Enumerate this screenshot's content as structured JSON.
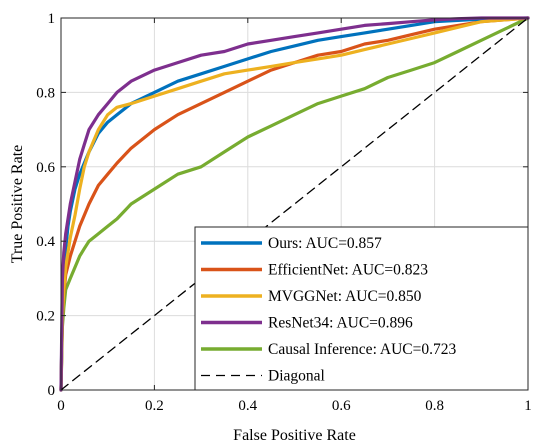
{
  "chart_data": {
    "type": "line",
    "title": "",
    "xlabel": "False Positive Rate",
    "ylabel": "True Positive Rate",
    "xlim": [
      0,
      1
    ],
    "ylim": [
      0,
      1
    ],
    "xticks": [
      "0",
      "0.2",
      "0.4",
      "0.6",
      "0.8",
      "1"
    ],
    "yticks": [
      "0",
      "0.2",
      "0.4",
      "0.6",
      "0.8",
      "1"
    ],
    "grid": true,
    "legend_position": "bottom-right",
    "series": [
      {
        "name": "Ours: AUC=0.857",
        "color": "#0072BD",
        "dash": "solid",
        "x": [
          0,
          0.003,
          0.006,
          0.01,
          0.015,
          0.02,
          0.03,
          0.04,
          0.05,
          0.06,
          0.08,
          0.1,
          0.12,
          0.15,
          0.2,
          0.25,
          0.3,
          0.35,
          0.4,
          0.45,
          0.5,
          0.55,
          0.6,
          0.65,
          0.7,
          0.75,
          0.8,
          0.9,
          1.0
        ],
        "y": [
          0,
          0.22,
          0.3,
          0.38,
          0.44,
          0.48,
          0.54,
          0.58,
          0.61,
          0.64,
          0.69,
          0.72,
          0.74,
          0.77,
          0.8,
          0.83,
          0.85,
          0.87,
          0.89,
          0.91,
          0.925,
          0.94,
          0.95,
          0.96,
          0.97,
          0.98,
          0.99,
          0.997,
          1.0
        ]
      },
      {
        "name": "EfficientNet: AUC=0.823",
        "color": "#D95319",
        "dash": "solid",
        "x": [
          0,
          0.003,
          0.006,
          0.01,
          0.02,
          0.03,
          0.04,
          0.05,
          0.06,
          0.08,
          0.1,
          0.12,
          0.15,
          0.2,
          0.25,
          0.3,
          0.35,
          0.4,
          0.45,
          0.5,
          0.55,
          0.6,
          0.65,
          0.7,
          0.75,
          0.8,
          0.85,
          0.9,
          1.0
        ],
        "y": [
          0,
          0.2,
          0.26,
          0.31,
          0.36,
          0.4,
          0.44,
          0.47,
          0.5,
          0.55,
          0.58,
          0.61,
          0.65,
          0.7,
          0.74,
          0.77,
          0.8,
          0.83,
          0.86,
          0.88,
          0.9,
          0.91,
          0.93,
          0.94,
          0.955,
          0.97,
          0.98,
          0.99,
          1.0
        ]
      },
      {
        "name": "MVGGNet: AUC=0.850",
        "color": "#EDB120",
        "dash": "solid",
        "x": [
          0,
          0.003,
          0.006,
          0.01,
          0.02,
          0.03,
          0.04,
          0.05,
          0.06,
          0.08,
          0.1,
          0.12,
          0.15,
          0.2,
          0.25,
          0.3,
          0.35,
          0.4,
          0.45,
          0.5,
          0.55,
          0.6,
          0.65,
          0.7,
          0.75,
          0.8,
          0.85,
          0.9,
          1.0
        ],
        "y": [
          0,
          0.2,
          0.27,
          0.33,
          0.41,
          0.47,
          0.54,
          0.6,
          0.64,
          0.7,
          0.74,
          0.76,
          0.77,
          0.79,
          0.81,
          0.83,
          0.85,
          0.86,
          0.87,
          0.88,
          0.89,
          0.9,
          0.915,
          0.93,
          0.945,
          0.96,
          0.975,
          0.99,
          1.0
        ]
      },
      {
        "name": "ResNet34: AUC=0.896",
        "color": "#7E2F8E",
        "dash": "solid",
        "x": [
          0,
          0.003,
          0.006,
          0.01,
          0.02,
          0.03,
          0.04,
          0.05,
          0.06,
          0.08,
          0.1,
          0.12,
          0.15,
          0.2,
          0.25,
          0.3,
          0.35,
          0.4,
          0.45,
          0.5,
          0.55,
          0.6,
          0.65,
          0.7,
          0.75,
          0.8,
          0.85,
          0.9,
          1.0
        ],
        "y": [
          0,
          0.3,
          0.37,
          0.42,
          0.5,
          0.56,
          0.62,
          0.66,
          0.7,
          0.74,
          0.77,
          0.8,
          0.83,
          0.86,
          0.88,
          0.9,
          0.91,
          0.93,
          0.94,
          0.95,
          0.96,
          0.97,
          0.98,
          0.985,
          0.99,
          0.995,
          0.998,
          1.0,
          1.0
        ]
      },
      {
        "name": "Causal Inference: AUC=0.723",
        "color": "#77AC30",
        "dash": "solid",
        "x": [
          0,
          0.003,
          0.006,
          0.01,
          0.02,
          0.03,
          0.04,
          0.05,
          0.06,
          0.08,
          0.1,
          0.12,
          0.15,
          0.2,
          0.25,
          0.3,
          0.35,
          0.4,
          0.45,
          0.5,
          0.55,
          0.6,
          0.65,
          0.7,
          0.75,
          0.8,
          0.85,
          0.9,
          0.95,
          1.0
        ],
        "y": [
          0,
          0.17,
          0.22,
          0.27,
          0.3,
          0.33,
          0.36,
          0.38,
          0.4,
          0.42,
          0.44,
          0.46,
          0.5,
          0.54,
          0.58,
          0.6,
          0.64,
          0.68,
          0.71,
          0.74,
          0.77,
          0.79,
          0.81,
          0.84,
          0.86,
          0.88,
          0.91,
          0.94,
          0.97,
          1.0
        ]
      },
      {
        "name": "Diagonal",
        "color": "#000000",
        "dash": "dashed",
        "x": [
          0,
          1
        ],
        "y": [
          0,
          1
        ]
      }
    ]
  }
}
